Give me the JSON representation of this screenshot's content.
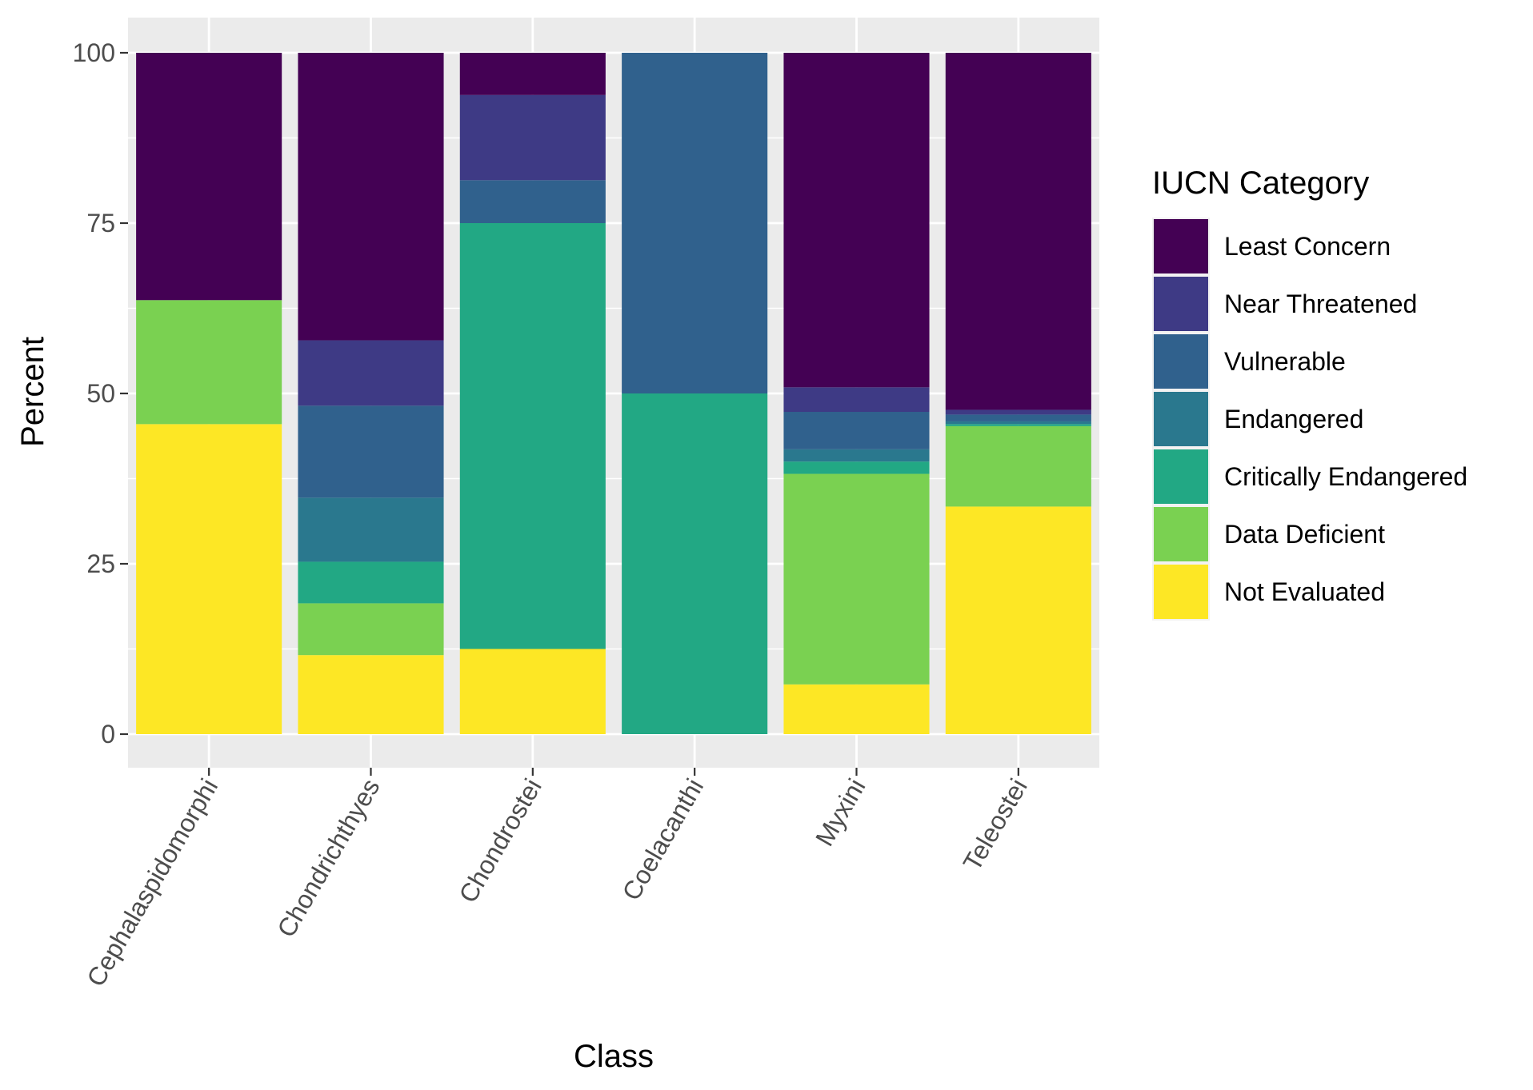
{
  "chart_data": {
    "type": "bar",
    "stacked": true,
    "title": "",
    "xlabel": "Class",
    "ylabel": "Percent",
    "ylim": [
      0,
      100
    ],
    "yticks": [
      0,
      25,
      50,
      75,
      100
    ],
    "grid": true,
    "legend_position": "right",
    "categories": [
      "Cephalaspidomorphi",
      "Chondrichthyes",
      "Chondrostei",
      "Coelacanthi",
      "Myxini",
      "Teleostei"
    ],
    "legend": {
      "title": "IUCN Category",
      "entries": [
        "Least Concern",
        "Near Threatened",
        "Vulnerable",
        "Endangered",
        "Critically Endangered",
        "Data Deficient",
        "Not Evaluated"
      ]
    },
    "series": [
      {
        "name": "Not Evaluated",
        "color": "#FDE725",
        "values": [
          45.5,
          11.6,
          12.5,
          0,
          7.3,
          33.4
        ]
      },
      {
        "name": "Data Deficient",
        "color": "#7AD151",
        "values": [
          18.2,
          7.6,
          0,
          0,
          30.9,
          11.8
        ]
      },
      {
        "name": "Critically Endangered",
        "color": "#22A884",
        "values": [
          0,
          6.1,
          62.5,
          50,
          1.8,
          0.3
        ]
      },
      {
        "name": "Endangered",
        "color": "#2A788E",
        "values": [
          0,
          9.4,
          0,
          0,
          1.8,
          0.4
        ]
      },
      {
        "name": "Vulnerable",
        "color": "#30618D",
        "values": [
          0,
          13.5,
          6.3,
          50,
          5.5,
          1.0
        ]
      },
      {
        "name": "Near Threatened",
        "color": "#3E3A85",
        "values": [
          0,
          9.6,
          12.5,
          0,
          3.6,
          0.7
        ]
      },
      {
        "name": "Least Concern",
        "color": "#440154",
        "values": [
          36.3,
          42.2,
          6.2,
          0,
          49.1,
          52.4
        ]
      }
    ]
  }
}
